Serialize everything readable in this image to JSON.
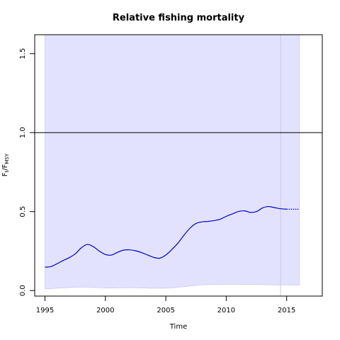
{
  "chart_data": {
    "type": "line",
    "title": "Relative fishing mortality",
    "xlabel": "Time",
    "ylabel_main": "F",
    "ylabel_sub1": "t",
    "ylabel_sep": "/F",
    "ylabel_sub2": "MSY",
    "xlim": [
      1994.15,
      2017.95
    ],
    "ylim": [
      -0.035,
      1.62
    ],
    "x_ticks": [
      1995,
      2000,
      2005,
      2010,
      2015
    ],
    "y_ticks": [
      0.0,
      0.5,
      1.0,
      1.5
    ],
    "y_tick_labels": [
      "0.0",
      "0.5",
      "1.0",
      "1.5"
    ],
    "reference_line": 1.0,
    "last_observation_x": 2014.5,
    "ci_band": {
      "x_start": 1995,
      "x_end": 2016.05,
      "upper": 1.62,
      "lower": [
        [
          1995,
          0.01
        ],
        [
          1998,
          0.022
        ],
        [
          2000,
          0.016
        ],
        [
          2002,
          0.018
        ],
        [
          2005,
          0.015
        ],
        [
          2008,
          0.036
        ],
        [
          2010,
          0.04
        ],
        [
          2012,
          0.038
        ],
        [
          2014,
          0.036
        ],
        [
          2016.05,
          0.034
        ]
      ]
    },
    "series": [
      {
        "style": "solid",
        "points": [
          [
            1995,
            0.148
          ],
          [
            1995.5,
            0.152
          ],
          [
            1996,
            0.17
          ],
          [
            1996.5,
            0.19
          ],
          [
            1997,
            0.208
          ],
          [
            1997.5,
            0.232
          ],
          [
            1998,
            0.27
          ],
          [
            1998.5,
            0.292
          ],
          [
            1999,
            0.278
          ],
          [
            1999.5,
            0.25
          ],
          [
            2000,
            0.228
          ],
          [
            2000.5,
            0.225
          ],
          [
            2001,
            0.242
          ],
          [
            2001.5,
            0.256
          ],
          [
            2002,
            0.258
          ],
          [
            2002.5,
            0.252
          ],
          [
            2003,
            0.24
          ],
          [
            2003.5,
            0.225
          ],
          [
            2004,
            0.21
          ],
          [
            2004.5,
            0.205
          ],
          [
            2005,
            0.225
          ],
          [
            2005.5,
            0.26
          ],
          [
            2006,
            0.3
          ],
          [
            2006.5,
            0.35
          ],
          [
            2007,
            0.395
          ],
          [
            2007.5,
            0.425
          ],
          [
            2008,
            0.435
          ],
          [
            2008.5,
            0.438
          ],
          [
            2009,
            0.443
          ],
          [
            2009.5,
            0.452
          ],
          [
            2010,
            0.47
          ],
          [
            2010.5,
            0.485
          ],
          [
            2011,
            0.5
          ],
          [
            2011.5,
            0.505
          ],
          [
            2012,
            0.495
          ],
          [
            2012.5,
            0.5
          ],
          [
            2013,
            0.523
          ],
          [
            2013.5,
            0.532
          ],
          [
            2014,
            0.525
          ],
          [
            2014.5,
            0.518
          ],
          [
            2015,
            0.515
          ]
        ]
      },
      {
        "style": "dotted",
        "points": [
          [
            2015,
            0.515
          ],
          [
            2016.05,
            0.515
          ]
        ]
      }
    ],
    "colors": {
      "line": "#0000cd",
      "band_fill": "#e2e2fe",
      "band_stroke": "#c0c0f0",
      "reference_line": "#000000",
      "vline": "#c8c8dc"
    }
  }
}
